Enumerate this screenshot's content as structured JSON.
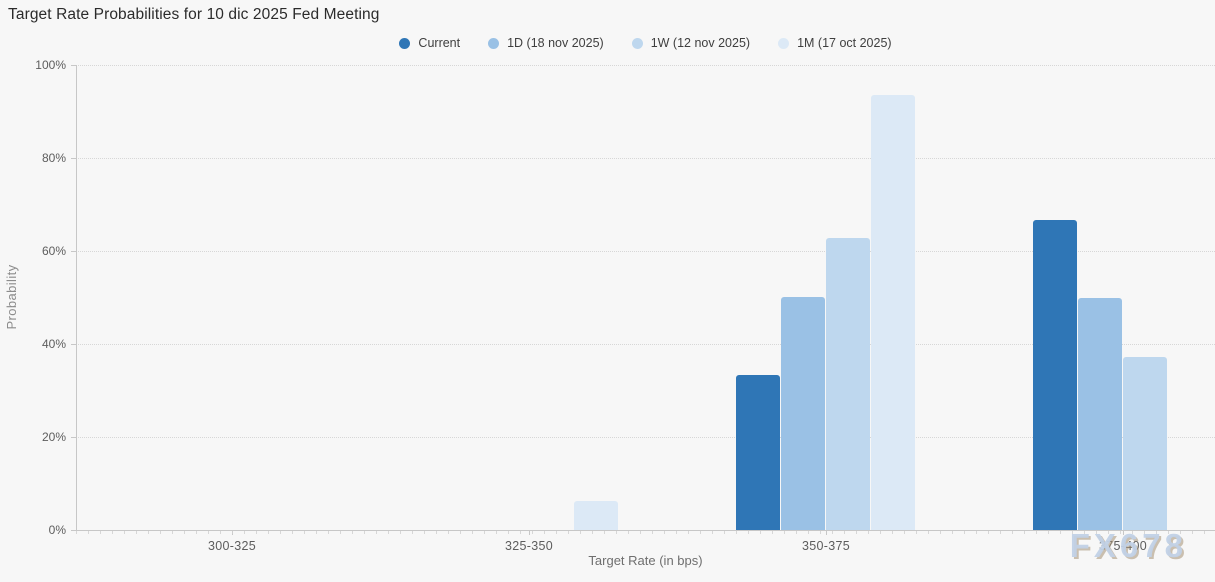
{
  "watermark": "FX678",
  "chart_data": {
    "type": "bar",
    "title": "Target Rate Probabilities for 10 dic 2025 Fed Meeting",
    "categories": [
      "300-325",
      "325-350",
      "350-375",
      "375-400"
    ],
    "series": [
      {
        "name": "Current",
        "color": "#2f76b6",
        "values": [
          0,
          0,
          33.4,
          66.6
        ]
      },
      {
        "name": "1D (18 nov 2025)",
        "color": "#9ac1e5",
        "values": [
          0,
          0,
          50.1,
          49.9
        ]
      },
      {
        "name": "1W (12 nov 2025)",
        "color": "#bed7ee",
        "values": [
          0,
          0,
          62.7,
          37.3
        ]
      },
      {
        "name": "1M (17 oct 2025)",
        "color": "#dce9f6",
        "values": [
          0,
          6.3,
          93.5,
          0
        ]
      }
    ],
    "xlabel": "Target Rate (in bps)",
    "ylabel": "Probability",
    "ylim": [
      0,
      100
    ],
    "yticks": [
      0,
      20,
      40,
      60,
      80,
      100
    ],
    "ytick_suffix": "%",
    "grid": "dotted-horizontal",
    "legend_position": "top-center"
  }
}
